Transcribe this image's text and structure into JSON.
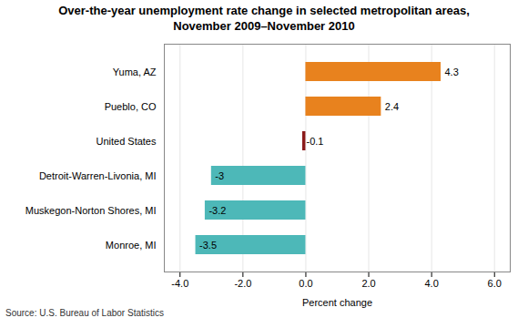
{
  "chart_data": {
    "type": "bar",
    "orientation": "horizontal",
    "title": "Over-the-year unemployment rate change in selected metropolitan areas,\nNovember 2009–November 2010",
    "source": "Source: U.S. Bureau of Labor Statistics",
    "xlabel": "Percent change",
    "categories": [
      "Monroe, MI",
      "Muskegon-Norton Shores, MI",
      "Detroit-Warren-Livonia, MI",
      "United States",
      "Pueblo, CO",
      "Yuma, AZ"
    ],
    "values": [
      -3.5,
      -3.2,
      -3.0,
      -0.1,
      2.4,
      4.3
    ],
    "colors": [
      "#4db8b8",
      "#4db8b8",
      "#4db8b8",
      "#8b1a1a",
      "#e8821e",
      "#e8821e"
    ],
    "xlim": [
      -4.5,
      6.5
    ],
    "xticks": [
      {
        "value": -4,
        "label": "-4.0"
      },
      {
        "value": -2,
        "label": "-2.0"
      },
      {
        "value": 0,
        "label": "0.0"
      },
      {
        "value": 2,
        "label": "2.0"
      },
      {
        "value": 4,
        "label": "4.0"
      },
      {
        "value": 6,
        "label": "6.0"
      }
    ],
    "grid": true,
    "data_labels": true
  }
}
